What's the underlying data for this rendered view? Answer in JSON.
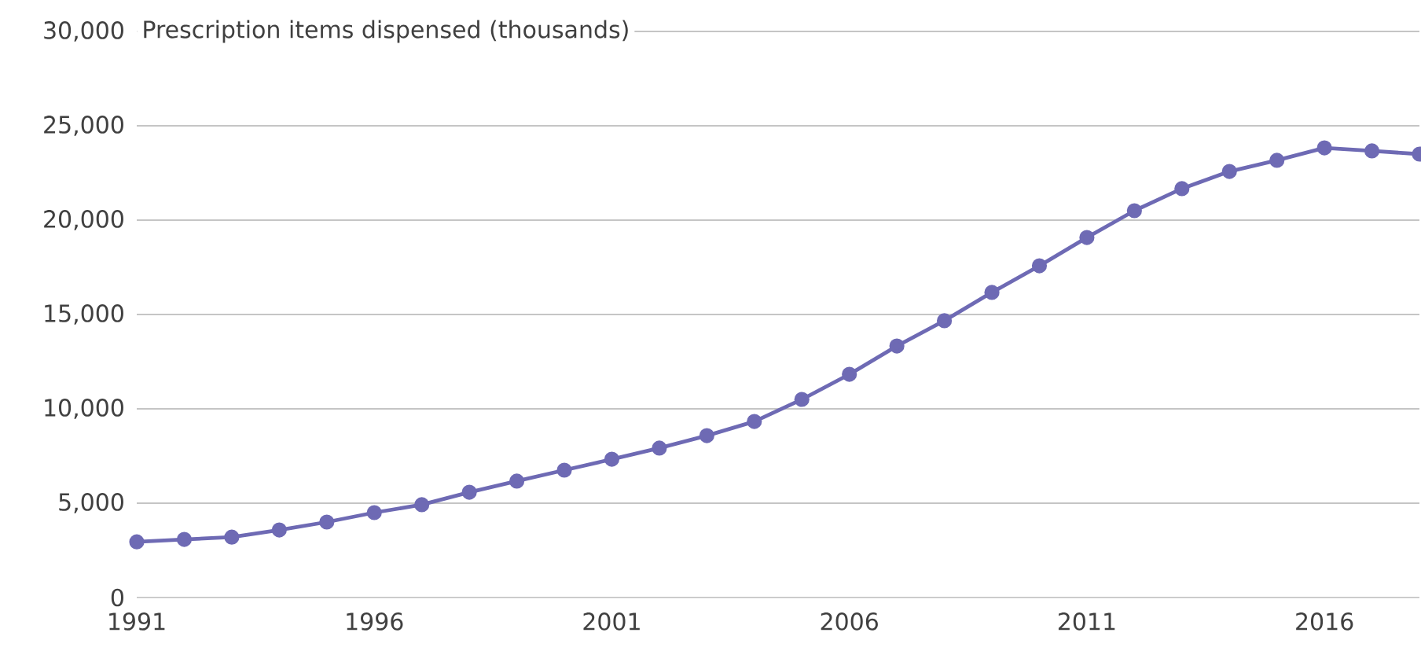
{
  "chart_data": {
    "type": "line",
    "ylabel": "Prescription items dispensed (thousands)",
    "x": [
      1991,
      1992,
      1993,
      1994,
      1995,
      1996,
      1997,
      1998,
      1999,
      2000,
      2001,
      2002,
      2003,
      2004,
      2005,
      2006,
      2007,
      2008,
      2009,
      2010,
      2011,
      2012,
      2013,
      2014,
      2015,
      2016,
      2017,
      2018
    ],
    "series": [
      {
        "color": "#6e6ab4",
        "values": [
          2950,
          3080,
          3200,
          3580,
          4000,
          4500,
          4920,
          5580,
          6170,
          6750,
          7330,
          7920,
          8580,
          9330,
          10500,
          11830,
          13330,
          14670,
          16170,
          17580,
          19080,
          20500,
          21670,
          22580,
          23170,
          23830,
          23670,
          23500
        ]
      }
    ],
    "xlim": [
      1991,
      2018
    ],
    "xticks": [
      1991,
      1996,
      2001,
      2006,
      2011,
      2016
    ],
    "ylim": [
      0,
      30000
    ],
    "yticks": [
      {
        "value": 0,
        "label": "0"
      },
      {
        "value": 5000,
        "label": "5,000"
      },
      {
        "value": 10000,
        "label": "10,000"
      },
      {
        "value": 15000,
        "label": "15,000"
      },
      {
        "value": 20000,
        "label": "20,000"
      },
      {
        "value": 25000,
        "label": "25,000"
      },
      {
        "value": 30000,
        "label": "30,000"
      }
    ],
    "grid": "y",
    "marker": "circle",
    "line_style": "solid"
  }
}
